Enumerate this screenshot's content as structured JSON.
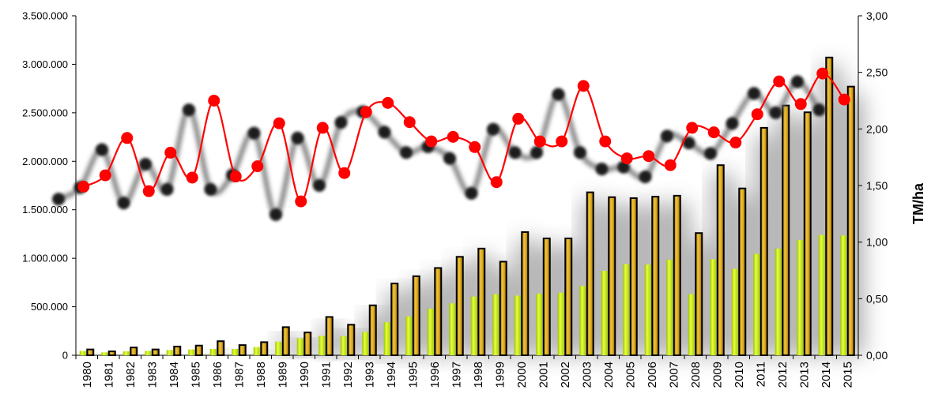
{
  "chart_data": {
    "type": "bar+line",
    "title": "",
    "xlabel": "",
    "ylabel_left": "",
    "ylabel_right": "TM/ha",
    "ylim_left": [
      0,
      3500000
    ],
    "ylim_right": [
      0,
      3
    ],
    "left_ticks": [
      "0",
      "500.000",
      "1.000.000",
      "1.500.000",
      "2.000.000",
      "2.500.000",
      "3.000.000",
      "3.500.000"
    ],
    "right_ticks": [
      "0,00",
      "0,50",
      "1,00",
      "1,50",
      "2,00",
      "2,50",
      "3,00"
    ],
    "categories": [
      "1980",
      "1981",
      "1982",
      "1983",
      "1984",
      "1985",
      "1986",
      "1987",
      "1988",
      "1989",
      "1990",
      "1991",
      "1992",
      "1993",
      "1994",
      "1995",
      "1996",
      "1997",
      "1998",
      "1999",
      "2000",
      "2001",
      "2002",
      "2003",
      "2004",
      "2005",
      "2006",
      "2007",
      "2008",
      "2009",
      "2010",
      "2011",
      "2012",
      "2013",
      "2014",
      "2015"
    ],
    "grid": false,
    "legend": "none",
    "series": [
      {
        "type": "bar",
        "axis": "left",
        "color": "#b8e000",
        "values": [
          45000,
          30000,
          40000,
          45000,
          55000,
          60000,
          65000,
          65000,
          85000,
          140000,
          175000,
          200000,
          195000,
          240000,
          340000,
          400000,
          480000,
          535000,
          605000,
          630000,
          615000,
          635000,
          645000,
          715000,
          870000,
          940000,
          935000,
          985000,
          630000,
          990000,
          890000,
          1045000,
          1100000,
          1190000,
          1240000,
          1235000
        ]
      },
      {
        "type": "bar",
        "axis": "left",
        "color": "#d4a017",
        "values": [
          60000,
          40000,
          80000,
          60000,
          90000,
          100000,
          145000,
          105000,
          135000,
          290000,
          235000,
          395000,
          315000,
          515000,
          740000,
          815000,
          900000,
          1015000,
          1100000,
          965000,
          1270000,
          1205000,
          1205000,
          1680000,
          1630000,
          1620000,
          1635000,
          1645000,
          1260000,
          1960000,
          1720000,
          2345000,
          2575000,
          2505000,
          3070000,
          2770000
        ]
      },
      {
        "type": "line",
        "axis": "right",
        "color": "#ff0000",
        "values": [
          1.49,
          1.59,
          1.92,
          1.45,
          1.79,
          1.57,
          2.25,
          1.58,
          1.67,
          2.05,
          1.36,
          2.01,
          1.61,
          2.15,
          2.23,
          2.06,
          1.89,
          1.93,
          1.84,
          1.53,
          2.09,
          1.89,
          1.89,
          2.38,
          1.89,
          1.74,
          1.76,
          1.68,
          2.01,
          1.97,
          1.88,
          2.13,
          2.42,
          2.22,
          2.49,
          2.26
        ]
      },
      {
        "type": "line",
        "axis": "left",
        "color": "#808080",
        "values": [
          1610000,
          1730000,
          2120000,
          1570000,
          1970000,
          1710000,
          2530000,
          1710000,
          1860000,
          2290000,
          1450000,
          2240000,
          1750000,
          2400000,
          2510000,
          2300000,
          2090000,
          2150000,
          2030000,
          1670000,
          2330000,
          2090000,
          2090000,
          2690000,
          2090000,
          1920000,
          1940000,
          1840000,
          2260000,
          2190000,
          2080000,
          2390000,
          2700000,
          2500000,
          2820000,
          2530000
        ]
      }
    ]
  }
}
